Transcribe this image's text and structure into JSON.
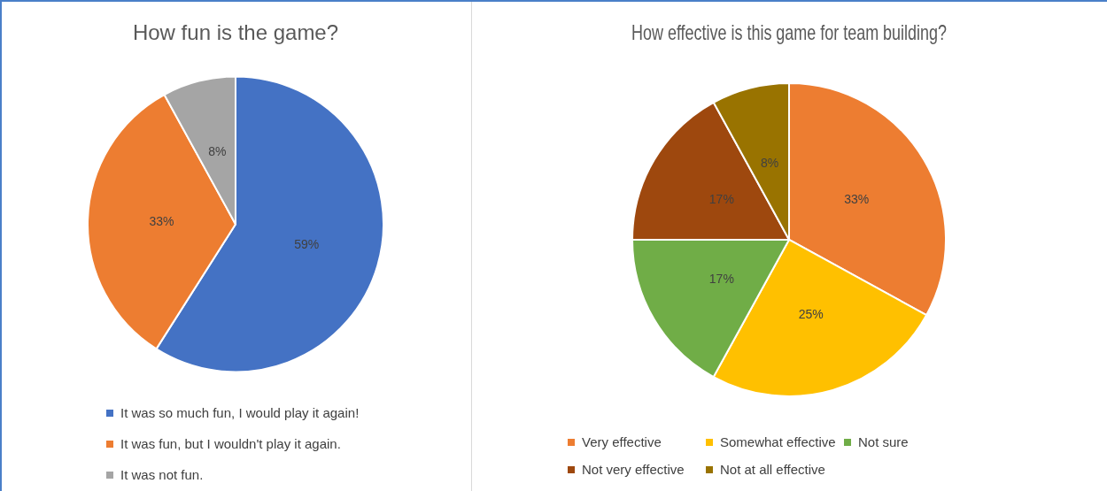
{
  "chart_data": [
    {
      "type": "pie",
      "title": "How fun is the game?",
      "categories": [
        "It was so much fun, I would play it again!",
        "It was fun, but I wouldn't play it again.",
        "It was not fun."
      ],
      "values": [
        59,
        33,
        8
      ],
      "value_labels": [
        "59%",
        "33%",
        "8%"
      ],
      "colors": [
        "#4472c4",
        "#ed7d31",
        "#a5a5a5"
      ],
      "legend": "bottom"
    },
    {
      "type": "pie",
      "title": "How effective is this game for team building?",
      "categories": [
        "Very effective",
        "Somewhat effective",
        "Not sure",
        "Not very effective",
        "Not at all effective"
      ],
      "values": [
        33,
        25,
        17,
        17,
        8
      ],
      "value_labels": [
        "33%",
        "25%",
        "17%",
        "17%",
        "8%"
      ],
      "colors": [
        "#ed7d31",
        "#ffc000",
        "#70ad47",
        "#9e480e",
        "#997300"
      ],
      "legend": "bottom"
    }
  ]
}
